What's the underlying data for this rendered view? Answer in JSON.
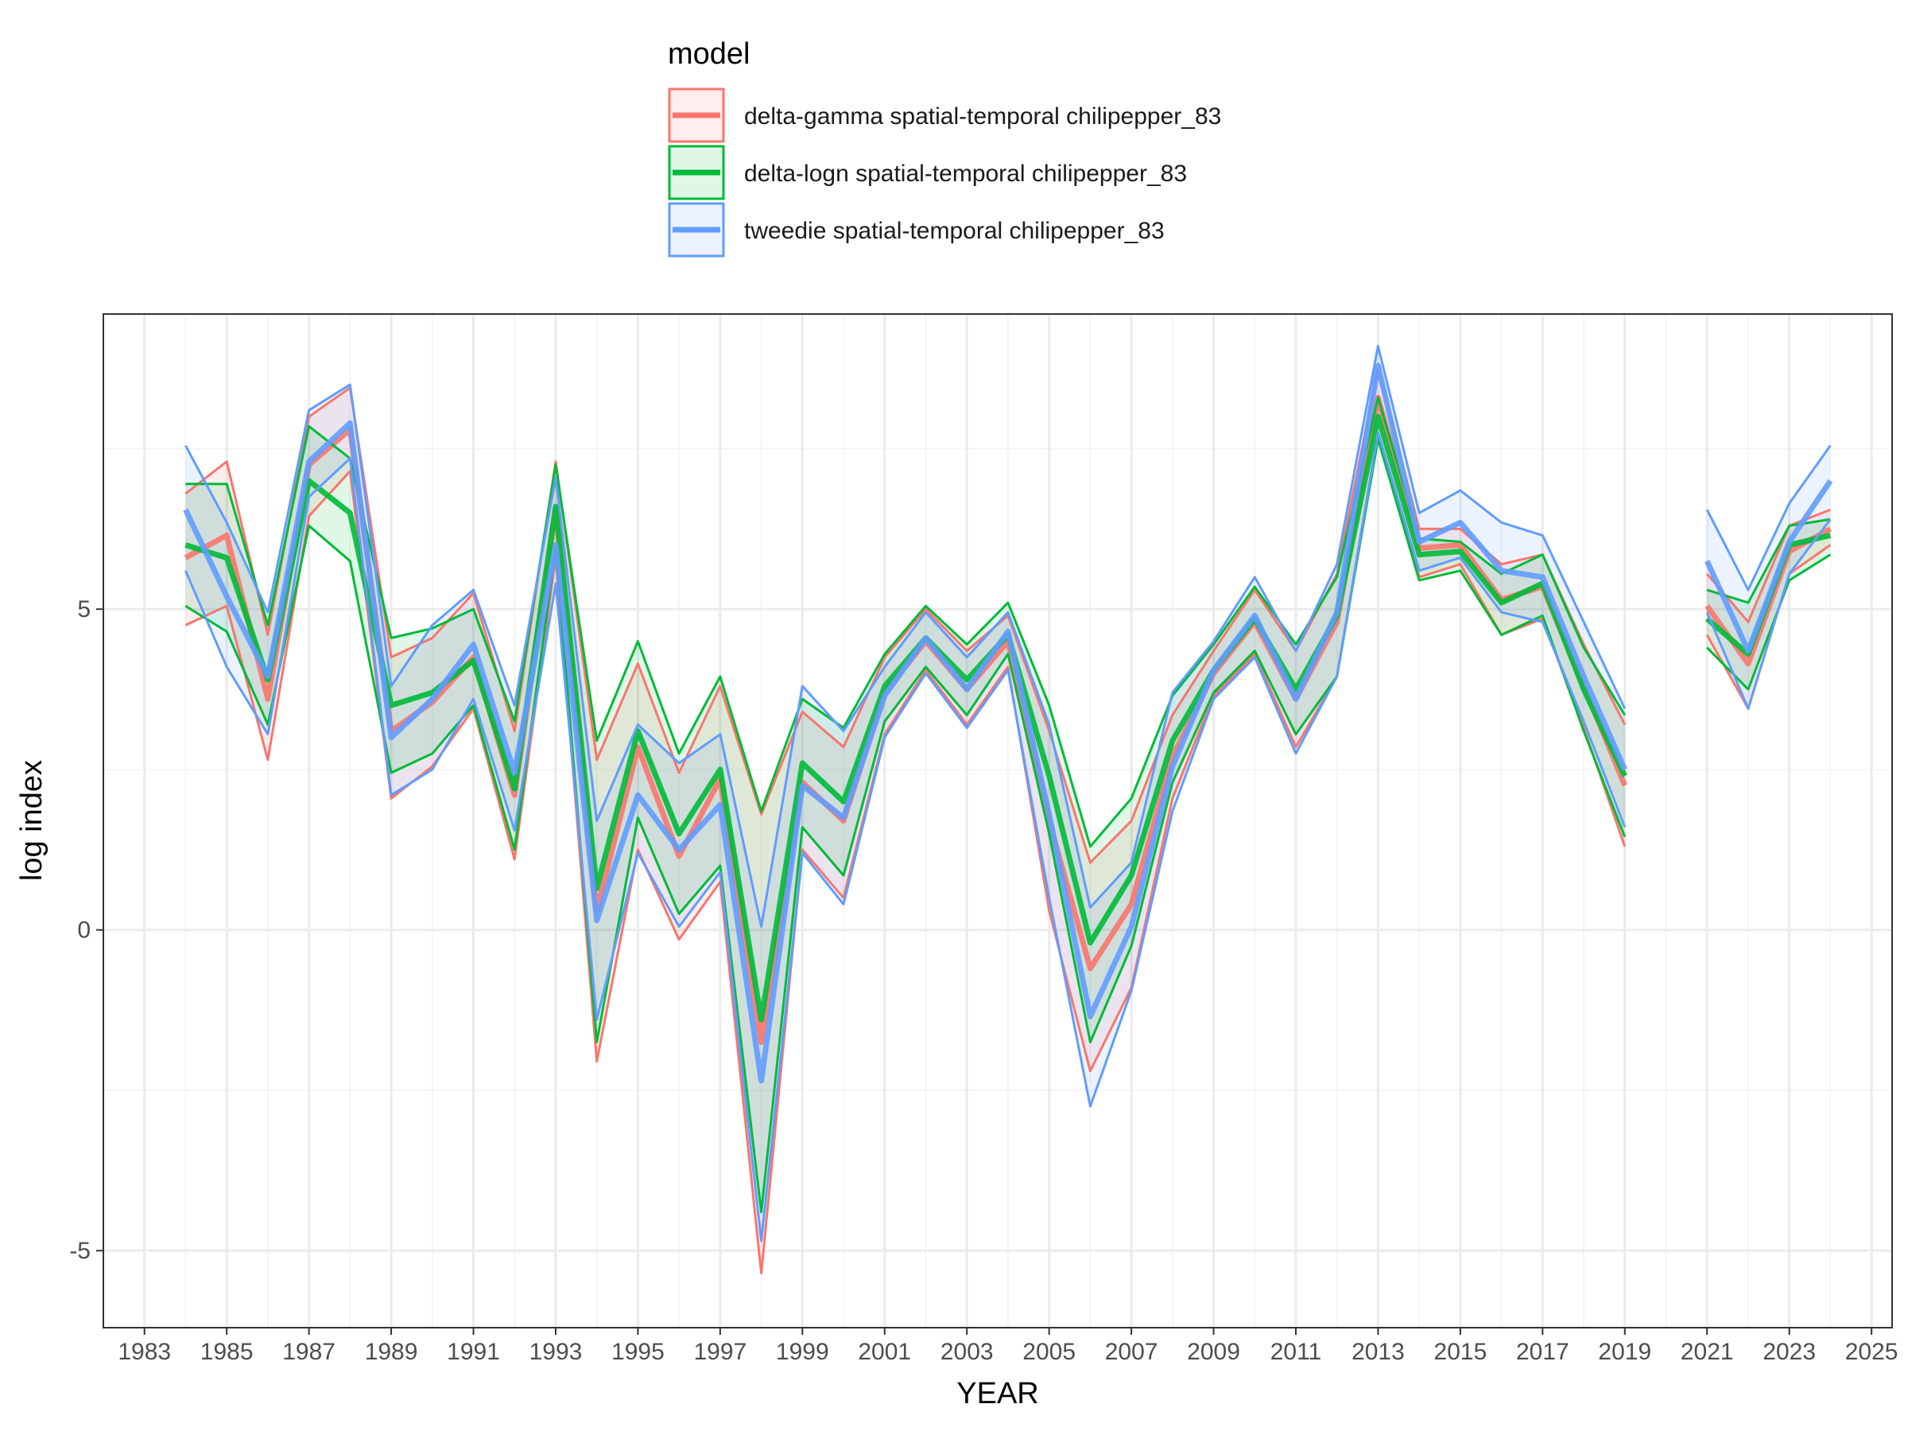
{
  "chart_data": {
    "type": "line",
    "xlabel": "YEAR",
    "ylabel": "log index",
    "legend_title": "model",
    "legend_position": "top",
    "grid": true,
    "x_ticks": [
      1983,
      1985,
      1987,
      1989,
      1991,
      1993,
      1995,
      1997,
      1999,
      2001,
      2003,
      2005,
      2007,
      2009,
      2011,
      2013,
      2015,
      2017,
      2019,
      2021,
      2023,
      2025
    ],
    "y_ticks": [
      -5,
      0,
      5
    ],
    "xlim": [
      1982.0,
      2025.5
    ],
    "ylim": [
      -6.2,
      9.6
    ],
    "x": [
      1984,
      1985,
      1986,
      1987,
      1988,
      1989,
      1990,
      1991,
      1992,
      1993,
      1994,
      1995,
      1996,
      1997,
      1998,
      1999,
      2000,
      2001,
      2002,
      2003,
      2004,
      2005,
      2006,
      2007,
      2008,
      2009,
      2010,
      2011,
      2012,
      2013,
      2014,
      2015,
      2016,
      2017,
      2018,
      2019,
      2020,
      2021,
      2022,
      2023,
      2024
    ],
    "series": [
      {
        "name": "delta-gamma spatial-temporal chilipepper_83",
        "color": "#F8766D",
        "values": [
          5.8,
          6.15,
          3.6,
          7.25,
          7.8,
          3.1,
          3.55,
          4.25,
          2.1,
          6.55,
          0.3,
          2.85,
          1.15,
          2.35,
          -1.75,
          2.3,
          1.7,
          3.7,
          4.5,
          3.75,
          4.5,
          1.7,
          -0.6,
          0.4,
          2.7,
          4.0,
          4.8,
          3.6,
          4.8,
          8.3,
          5.95,
          6.0,
          5.15,
          5.35,
          3.8,
          2.25,
          null,
          5.05,
          4.15,
          5.9,
          6.25
        ],
        "lower": [
          4.75,
          5.05,
          2.65,
          6.45,
          7.15,
          2.05,
          2.55,
          3.45,
          1.1,
          5.8,
          -2.05,
          1.25,
          -0.15,
          0.75,
          -5.35,
          1.25,
          0.5,
          3.05,
          4.05,
          3.2,
          4.1,
          0.3,
          -2.2,
          -0.9,
          2.05,
          3.65,
          4.3,
          2.85,
          3.95,
          7.75,
          5.5,
          5.7,
          4.6,
          4.85,
          3.15,
          1.3,
          null,
          4.6,
          3.45,
          5.55,
          6.0
        ],
        "upper": [
          6.8,
          7.3,
          4.6,
          8.0,
          8.45,
          4.25,
          4.55,
          5.25,
          3.1,
          7.3,
          2.65,
          4.15,
          2.45,
          3.8,
          1.8,
          3.4,
          2.85,
          4.25,
          5.0,
          4.35,
          4.9,
          3.1,
          1.05,
          1.7,
          3.35,
          4.35,
          5.3,
          4.35,
          5.55,
          8.75,
          6.25,
          6.25,
          5.7,
          5.85,
          4.45,
          3.2,
          null,
          5.55,
          4.8,
          6.3,
          6.55
        ]
      },
      {
        "name": "delta-logn spatial-temporal chilipepper_83",
        "color": "#00BA38",
        "values": [
          6.0,
          5.8,
          3.9,
          7.0,
          6.5,
          3.5,
          3.7,
          4.2,
          2.2,
          6.6,
          0.65,
          3.1,
          1.5,
          2.5,
          -1.4,
          2.6,
          2.0,
          3.8,
          4.55,
          3.9,
          4.6,
          2.4,
          -0.2,
          0.85,
          2.95,
          4.05,
          4.85,
          3.75,
          4.9,
          8.0,
          5.85,
          5.9,
          5.1,
          5.4,
          3.75,
          2.4,
          null,
          4.85,
          4.3,
          6.0,
          6.15
        ],
        "lower": [
          5.05,
          4.65,
          3.2,
          6.3,
          5.75,
          2.45,
          2.75,
          3.5,
          1.25,
          5.95,
          -1.75,
          1.75,
          0.25,
          1.0,
          -4.4,
          1.6,
          0.85,
          3.25,
          4.1,
          3.35,
          4.3,
          1.5,
          -1.75,
          -0.25,
          2.3,
          3.7,
          4.35,
          3.05,
          3.95,
          7.65,
          5.45,
          5.6,
          4.6,
          4.9,
          3.1,
          1.45,
          null,
          4.4,
          3.75,
          5.45,
          5.85
        ],
        "upper": [
          6.95,
          6.95,
          4.75,
          7.85,
          7.35,
          4.55,
          4.7,
          5.0,
          3.25,
          7.25,
          2.95,
          4.5,
          2.75,
          3.95,
          1.85,
          3.6,
          3.15,
          4.3,
          5.05,
          4.45,
          5.1,
          3.5,
          1.3,
          2.05,
          3.65,
          4.45,
          5.35,
          4.45,
          5.5,
          8.3,
          6.1,
          6.05,
          5.55,
          5.85,
          4.4,
          3.35,
          null,
          5.3,
          5.1,
          6.3,
          6.4
        ]
      },
      {
        "name": "tweedie spatial-temporal chilipepper_83",
        "color": "#619CFF",
        "values": [
          6.55,
          5.2,
          3.95,
          7.3,
          7.9,
          3.0,
          3.6,
          4.45,
          2.45,
          6.0,
          0.15,
          2.1,
          1.25,
          1.95,
          -2.35,
          2.25,
          1.75,
          3.65,
          4.55,
          3.75,
          4.65,
          1.8,
          -1.35,
          0.05,
          2.55,
          4.05,
          4.9,
          3.6,
          4.95,
          8.8,
          6.05,
          6.35,
          5.6,
          5.5,
          3.95,
          2.5,
          null,
          5.75,
          4.35,
          6.05,
          7.0
        ],
        "lower": [
          5.6,
          4.1,
          3.05,
          6.75,
          7.35,
          2.1,
          2.5,
          3.6,
          1.55,
          5.4,
          -1.4,
          1.2,
          0.05,
          0.9,
          -4.85,
          1.2,
          0.4,
          3.0,
          4.0,
          3.15,
          4.05,
          0.5,
          -2.75,
          -0.95,
          1.85,
          3.6,
          4.25,
          2.75,
          3.95,
          7.75,
          5.6,
          5.8,
          4.95,
          4.8,
          3.25,
          1.6,
          null,
          4.95,
          3.45,
          5.55,
          6.4
        ],
        "upper": [
          7.55,
          6.35,
          4.95,
          8.1,
          8.5,
          3.8,
          4.75,
          5.3,
          3.5,
          7.05,
          1.7,
          3.2,
          2.6,
          3.05,
          0.05,
          3.8,
          3.1,
          4.1,
          4.95,
          4.25,
          4.95,
          3.2,
          0.35,
          1.05,
          3.7,
          4.5,
          5.5,
          4.35,
          5.7,
          9.1,
          6.5,
          6.85,
          6.35,
          6.15,
          4.8,
          3.45,
          null,
          6.55,
          5.3,
          6.65,
          7.55
        ]
      }
    ]
  }
}
